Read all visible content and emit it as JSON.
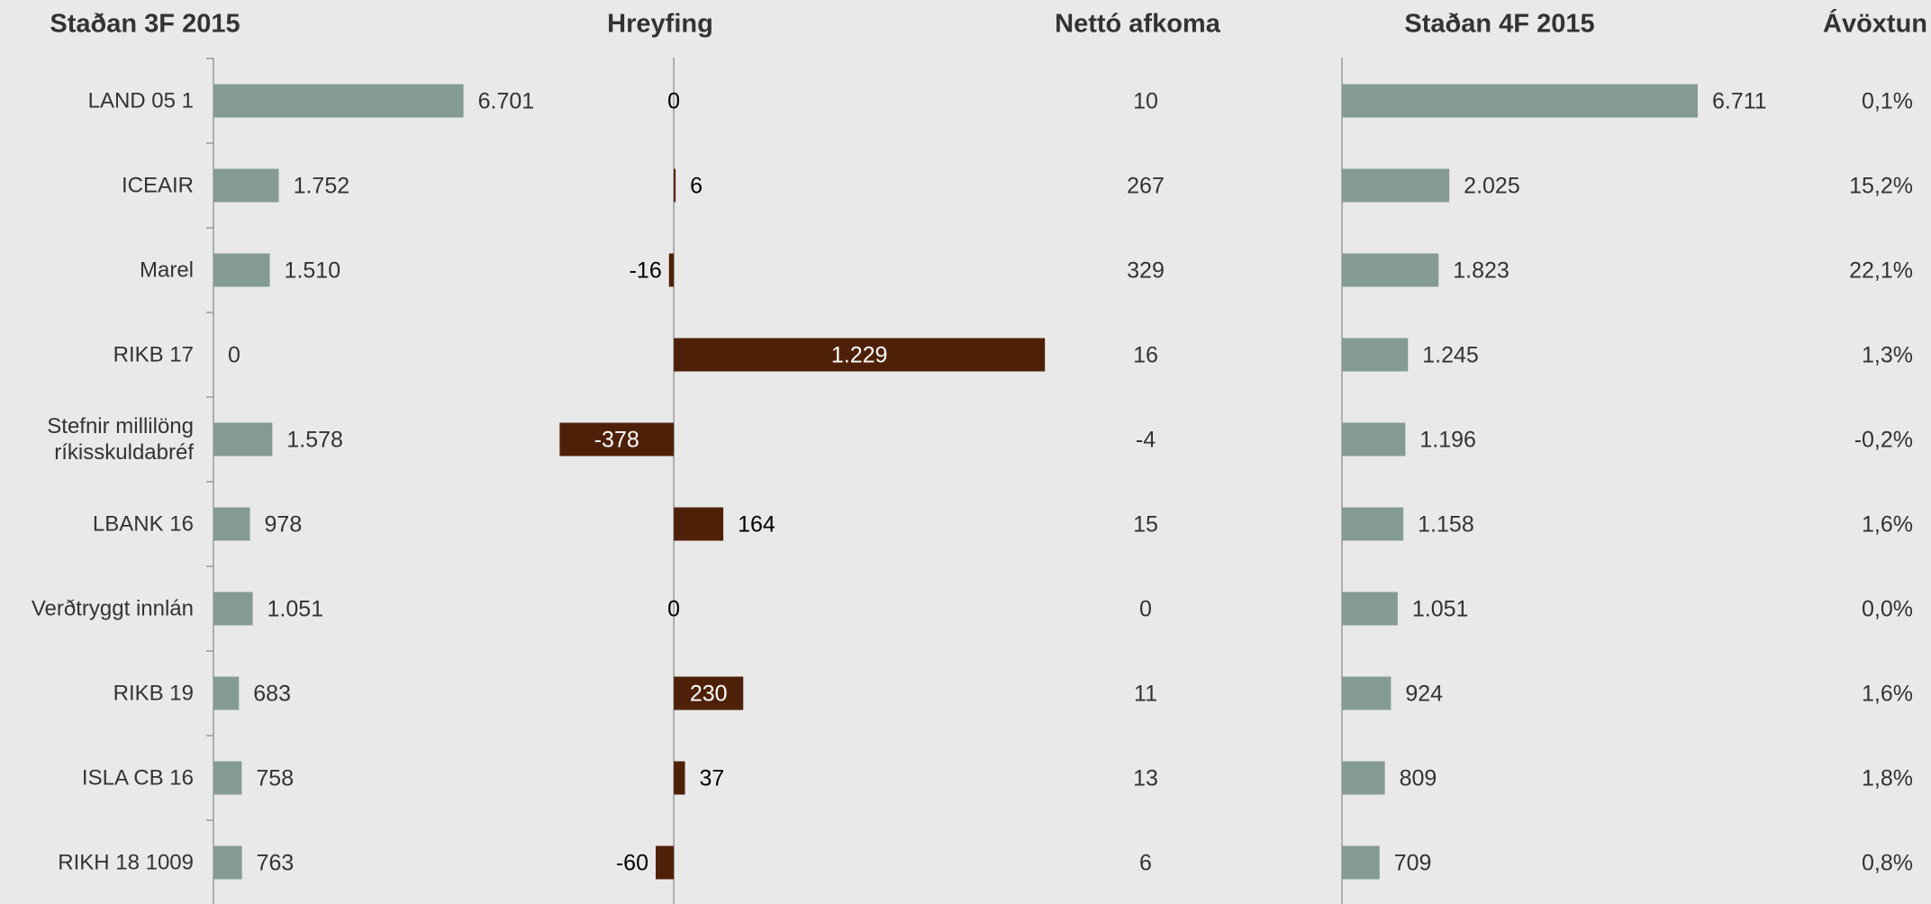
{
  "chart_data": [
    {
      "type": "bar",
      "title": "Staðan 3F 2015",
      "categories": [
        "LAND 05 1",
        "ICEAIR",
        "Marel",
        "RIKB 17",
        "Stefnir millilöng ríkisskuldabréf",
        "LBANK 16",
        "Verðtryggt innlán",
        "RIKB 19",
        "ISLA CB 16",
        "RIKH 18 1009"
      ],
      "values": [
        6701,
        1752,
        1510,
        0,
        1578,
        978,
        1051,
        683,
        758,
        763
      ],
      "value_labels": [
        "6.701",
        "1.752",
        "1.510",
        "0",
        "1.578",
        "978",
        "1.051",
        "683",
        "758",
        "763"
      ],
      "color": "#849b93",
      "xlim": [
        0,
        7000
      ]
    },
    {
      "type": "bar",
      "title": "Hreyfing",
      "values": [
        0,
        6,
        -16,
        1229,
        -378,
        164,
        0,
        230,
        37,
        -60
      ],
      "value_labels": [
        "0",
        "6",
        "-16",
        "1.229",
        "-378",
        "164",
        "0",
        "230",
        "37",
        "-60"
      ],
      "color": "#4f2008",
      "xlim": [
        -400,
        1300
      ]
    },
    {
      "type": "table",
      "title": "Nettó afkoma",
      "values": [
        10,
        267,
        329,
        16,
        -4,
        15,
        0,
        11,
        13,
        6
      ]
    },
    {
      "type": "bar",
      "title": "Staðan 4F 2015",
      "values": [
        6711,
        2025,
        1823,
        1245,
        1196,
        1158,
        1051,
        924,
        809,
        709
      ],
      "value_labels": [
        "6.711",
        "2.025",
        "1.823",
        "1.245",
        "1.196",
        "1.158",
        "1.051",
        "924",
        "809",
        "709"
      ],
      "color": "#849b93",
      "xlim": [
        0,
        7000
      ]
    },
    {
      "type": "table",
      "title": "Ávöxtun",
      "values": [
        0.1,
        15.2,
        22.1,
        1.3,
        -0.2,
        1.6,
        0.0,
        1.6,
        1.8,
        0.8
      ],
      "value_labels": [
        "0,1%",
        "15,2%",
        "22,1%",
        "1,3%",
        "-0,2%",
        "1,6%",
        "0,0%",
        "1,6%",
        "1,8%",
        "0,8%"
      ]
    }
  ]
}
